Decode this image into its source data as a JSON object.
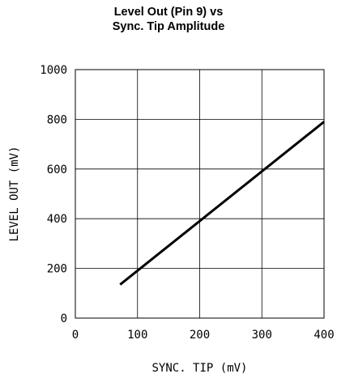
{
  "chart_data": {
    "type": "line",
    "title": [
      "Level Out (Pin 9) vs",
      "Sync. Tip Amplitude"
    ],
    "xlabel": "SYNC. TIP (mV)",
    "ylabel": "LEVEL OUT (mV)",
    "xlim": [
      0,
      400
    ],
    "ylim": [
      0,
      1000
    ],
    "xticks": [
      0,
      100,
      200,
      300,
      400
    ],
    "yticks": [
      0,
      200,
      400,
      600,
      800,
      1000
    ],
    "xtick_labels": [
      "0",
      "100",
      "200",
      "300",
      "400"
    ],
    "ytick_labels": [
      "0",
      "200",
      "400",
      "600",
      "800",
      "1000"
    ],
    "grid": true,
    "series": [
      {
        "x": [
          72,
          400
        ],
        "y": [
          135,
          790
        ]
      }
    ]
  }
}
